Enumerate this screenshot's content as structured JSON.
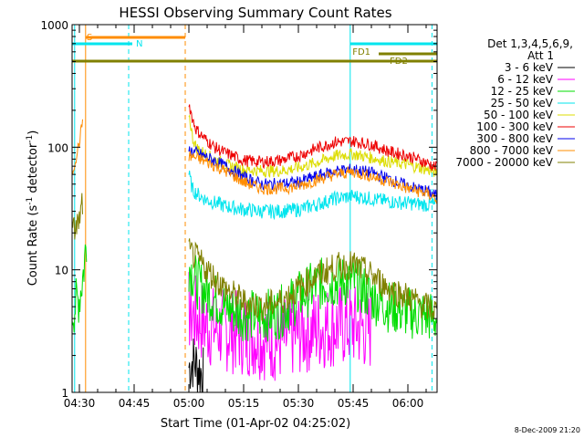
{
  "chart_data": {
    "type": "line",
    "title": "HESSI Observing Summary Count Rates",
    "xlabel": "Start Time (01-Apr-02 04:25:02)",
    "ylabel": "Count Rate (s",
    "ylabel_sup1": "-1",
    "ylabel_mid": " detector",
    "ylabel_sup2": "-1",
    "ylabel_end": ")",
    "yscale": "log",
    "ylim": [
      1,
      1000
    ],
    "xlim_minutes": [
      -2,
      98
    ],
    "x_ticks": [
      {
        "label": "04:30",
        "min": 0
      },
      {
        "label": "04:45",
        "min": 15
      },
      {
        "label": "05:00",
        "min": 30
      },
      {
        "label": "05:15",
        "min": 45
      },
      {
        "label": "05:30",
        "min": 60
      },
      {
        "label": "05:45",
        "min": 75
      },
      {
        "label": "06:00",
        "min": 90
      }
    ],
    "y_ticks": [
      {
        "label": "1",
        "value": 1
      },
      {
        "label": "10",
        "value": 10
      },
      {
        "label": "100",
        "value": 100
      },
      {
        "label": "1000",
        "value": 1000
      }
    ],
    "legend": {
      "placement": "right",
      "title1": "Det 1,3,4,5,6,9,",
      "title2": "Att 1"
    },
    "series": [
      {
        "name": "3 - 6 keV",
        "color": "#000000",
        "points": [
          [
            30,
            1.6
          ],
          [
            31,
            1.8
          ],
          [
            32,
            1.7
          ],
          [
            33,
            1.5
          ],
          [
            34,
            1.4
          ]
        ]
      },
      {
        "name": "6 - 12 keV",
        "color": "#ff00ff",
        "points": [
          [
            30,
            4.5
          ],
          [
            35,
            3.5
          ],
          [
            40,
            3.2
          ],
          [
            45,
            3.0
          ],
          [
            50,
            2.8
          ],
          [
            55,
            2.6
          ],
          [
            60,
            3.0
          ],
          [
            65,
            3.3
          ],
          [
            70,
            3.5
          ],
          [
            75,
            3.5
          ],
          [
            80,
            3.2
          ]
        ]
      },
      {
        "name": "12 - 25 keV",
        "color": "#00dd00",
        "points": [
          [
            -2,
            4.5
          ],
          [
            0,
            6
          ],
          [
            1,
            9
          ],
          [
            2,
            18
          ],
          [
            30,
            11
          ],
          [
            32,
            8
          ],
          [
            35,
            6.5
          ],
          [
            40,
            5
          ],
          [
            45,
            4.3
          ],
          [
            50,
            4.2
          ],
          [
            55,
            4.5
          ],
          [
            60,
            6
          ],
          [
            65,
            7.5
          ],
          [
            70,
            8
          ],
          [
            75,
            8
          ],
          [
            80,
            6
          ],
          [
            85,
            5
          ],
          [
            90,
            4.5
          ],
          [
            95,
            4.2
          ],
          [
            98,
            4.0
          ]
        ]
      },
      {
        "name": "25 - 50 keV",
        "color": "#00e5ee",
        "points": [
          [
            30,
            60
          ],
          [
            31,
            45
          ],
          [
            33,
            40
          ],
          [
            35,
            37
          ],
          [
            40,
            33
          ],
          [
            45,
            31
          ],
          [
            50,
            30
          ],
          [
            55,
            30
          ],
          [
            60,
            31
          ],
          [
            65,
            34
          ],
          [
            70,
            38
          ],
          [
            75,
            40
          ],
          [
            80,
            38
          ],
          [
            85,
            36
          ],
          [
            90,
            35
          ],
          [
            95,
            34
          ],
          [
            98,
            34
          ]
        ]
      },
      {
        "name": "50 - 100 keV",
        "color": "#dddd00",
        "points": [
          [
            30,
            190
          ],
          [
            31,
            120
          ],
          [
            32,
            100
          ],
          [
            34,
            90
          ],
          [
            37,
            80
          ],
          [
            40,
            72
          ],
          [
            45,
            66
          ],
          [
            50,
            64
          ],
          [
            55,
            64
          ],
          [
            60,
            68
          ],
          [
            65,
            75
          ],
          [
            70,
            85
          ],
          [
            75,
            88
          ],
          [
            80,
            82
          ],
          [
            85,
            76
          ],
          [
            90,
            72
          ],
          [
            95,
            66
          ],
          [
            98,
            62
          ]
        ]
      },
      {
        "name": "100 - 300 keV",
        "color": "#ee0000",
        "points": [
          [
            30,
            230
          ],
          [
            31,
            170
          ],
          [
            32,
            140
          ],
          [
            34,
            120
          ],
          [
            37,
            100
          ],
          [
            40,
            90
          ],
          [
            45,
            78
          ],
          [
            50,
            76
          ],
          [
            55,
            78
          ],
          [
            60,
            85
          ],
          [
            65,
            98
          ],
          [
            70,
            110
          ],
          [
            75,
            112
          ],
          [
            80,
            105
          ],
          [
            85,
            92
          ],
          [
            90,
            85
          ],
          [
            95,
            75
          ],
          [
            98,
            68
          ]
        ]
      },
      {
        "name": "300 - 800 keV",
        "color": "#0000ee",
        "points": [
          [
            30,
            95
          ],
          [
            33,
            88
          ],
          [
            36,
            80
          ],
          [
            40,
            70
          ],
          [
            45,
            57
          ],
          [
            50,
            50
          ],
          [
            55,
            50
          ],
          [
            60,
            52
          ],
          [
            65,
            58
          ],
          [
            70,
            64
          ],
          [
            75,
            66
          ],
          [
            80,
            62
          ],
          [
            85,
            55
          ],
          [
            90,
            48
          ],
          [
            95,
            44
          ],
          [
            98,
            40
          ]
        ]
      },
      {
        "name": "800 - 7000 keV",
        "color": "#ff8c00",
        "points": [
          [
            -2,
            60
          ],
          [
            0,
            110
          ],
          [
            1,
            175
          ],
          [
            30,
            85
          ],
          [
            33,
            80
          ],
          [
            36,
            73
          ],
          [
            40,
            64
          ],
          [
            45,
            52
          ],
          [
            50,
            46
          ],
          [
            55,
            46
          ],
          [
            60,
            48
          ],
          [
            65,
            54
          ],
          [
            70,
            60
          ],
          [
            75,
            63
          ],
          [
            80,
            58
          ],
          [
            85,
            52
          ],
          [
            90,
            46
          ],
          [
            95,
            42
          ],
          [
            98,
            38
          ]
        ]
      },
      {
        "name": "7000 - 20000 keV",
        "color": "#808000",
        "points": [
          [
            -2,
            20
          ],
          [
            0,
            25
          ],
          [
            1,
            38
          ],
          [
            30,
            14
          ],
          [
            32,
            12.5
          ],
          [
            35,
            10
          ],
          [
            38,
            8
          ],
          [
            40,
            7
          ],
          [
            45,
            5.5
          ],
          [
            50,
            5
          ],
          [
            55,
            5.5
          ],
          [
            60,
            7
          ],
          [
            65,
            9
          ],
          [
            70,
            10.5
          ],
          [
            75,
            11
          ],
          [
            80,
            9
          ],
          [
            85,
            7
          ],
          [
            90,
            6
          ],
          [
            95,
            5
          ],
          [
            98,
            4.6
          ]
        ]
      }
    ],
    "annotations": [
      {
        "text": "S",
        "color": "#ff8c00"
      },
      {
        "text": "N",
        "color": "#00e5ee"
      },
      {
        "text": "FD1",
        "color": "#808000"
      },
      {
        "text": "FD2",
        "color": "#808000"
      }
    ],
    "timestamp": "8-Dec-2009 21:20"
  }
}
